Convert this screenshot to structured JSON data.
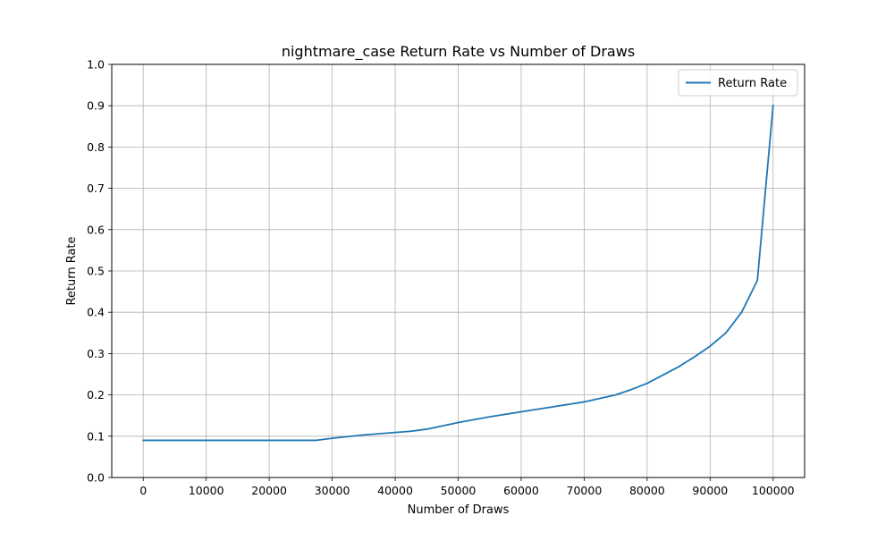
{
  "chart_data": {
    "type": "line",
    "title": "nightmare_case Return Rate vs Number of Draws",
    "xlabel": "Number of Draws",
    "ylabel": "Return Rate",
    "xlim": [
      -5000,
      105000
    ],
    "ylim": [
      0.0,
      1.0
    ],
    "xticks": [
      0,
      10000,
      20000,
      30000,
      40000,
      50000,
      60000,
      70000,
      80000,
      90000,
      100000
    ],
    "xtick_labels": [
      "0",
      "10000",
      "20000",
      "30000",
      "40000",
      "50000",
      "60000",
      "70000",
      "80000",
      "90000",
      "100000"
    ],
    "yticks": [
      0.0,
      0.1,
      0.2,
      0.3,
      0.4,
      0.5,
      0.6,
      0.7,
      0.8,
      0.9,
      1.0
    ],
    "ytick_labels": [
      "0.0",
      "0.1",
      "0.2",
      "0.3",
      "0.4",
      "0.5",
      "0.6",
      "0.7",
      "0.8",
      "0.9",
      "1.0"
    ],
    "grid": true,
    "legend_position": "top-right",
    "series": [
      {
        "name": "Return Rate",
        "color": "#1f77b4",
        "x": [
          0,
          5000,
          10000,
          15000,
          20000,
          25000,
          27500,
          30000,
          35000,
          40000,
          42500,
          45000,
          50000,
          55000,
          60000,
          65000,
          70000,
          75000,
          77500,
          80000,
          85000,
          87500,
          90000,
          92500,
          95000,
          97500,
          100000
        ],
        "y": [
          0.09,
          0.09,
          0.09,
          0.09,
          0.09,
          0.09,
          0.09,
          0.095,
          0.103,
          0.109,
          0.112,
          0.117,
          0.133,
          0.147,
          0.159,
          0.171,
          0.183,
          0.2,
          0.213,
          0.228,
          0.268,
          0.292,
          0.318,
          0.35,
          0.4,
          0.477,
          0.9
        ]
      }
    ]
  }
}
